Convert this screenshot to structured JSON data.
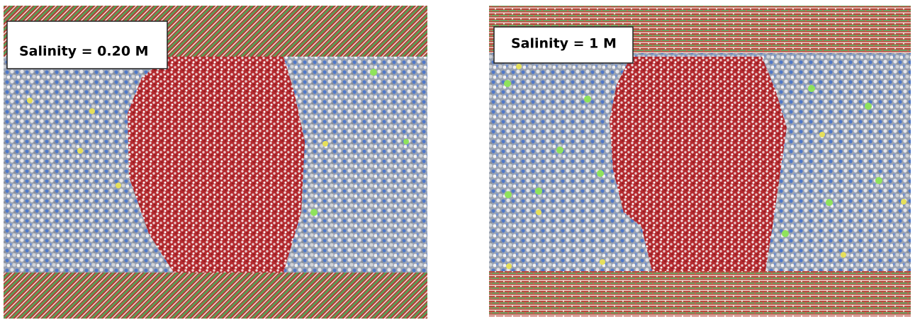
{
  "panels": [
    {
      "label": "Salinity = 0.20 M"
    },
    {
      "label": "Salinity = 1 M"
    }
  ]
}
